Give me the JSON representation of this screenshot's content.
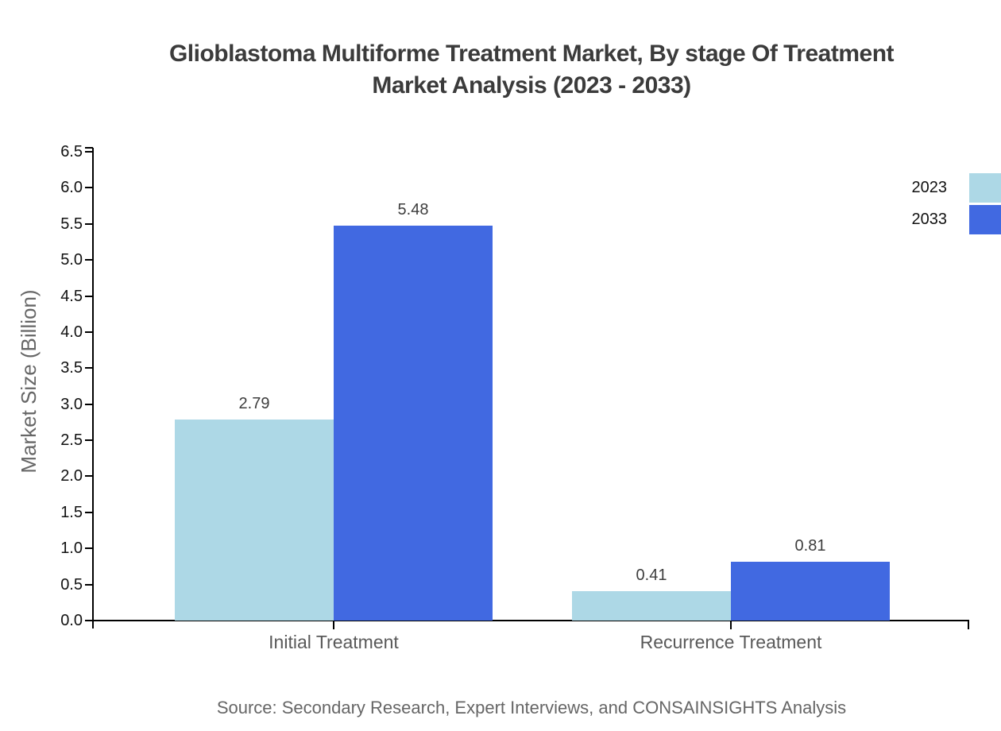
{
  "title": {
    "line1": "Glioblastoma Multiforme Treatment Market, By stage Of Treatment",
    "line2": "Market Analysis (2023 - 2033)"
  },
  "labels": {
    "ylabel": "Market Size (Billion)",
    "source": "Source: Secondary Research, Expert Interviews, and CONSAINSIGHTS Analysis"
  },
  "colors": {
    "series_2023": "#ADD8E6",
    "series_2033": "#4169E1",
    "axis": "#000000",
    "title_text": "#3b3b3b",
    "muted_text": "#666666"
  },
  "chart_data": {
    "type": "bar",
    "title": "Glioblastoma Multiforme Treatment Market, By stage Of Treatment Market Analysis (2023 - 2033)",
    "categories": [
      "Initial Treatment",
      "Recurrence Treatment"
    ],
    "series": [
      {
        "name": "2023",
        "color": "#ADD8E6",
        "values": [
          2.79,
          0.41
        ]
      },
      {
        "name": "2033",
        "color": "#4169E1",
        "values": [
          5.48,
          0.81
        ]
      }
    ],
    "xlabel": "",
    "ylabel": "Market Size (Billion)",
    "ylim": [
      0,
      6.5
    ],
    "ytick_step": 0.5,
    "grid": false,
    "legend_position": "top-right",
    "value_labels": true,
    "value_label_format": "2-decimals"
  }
}
